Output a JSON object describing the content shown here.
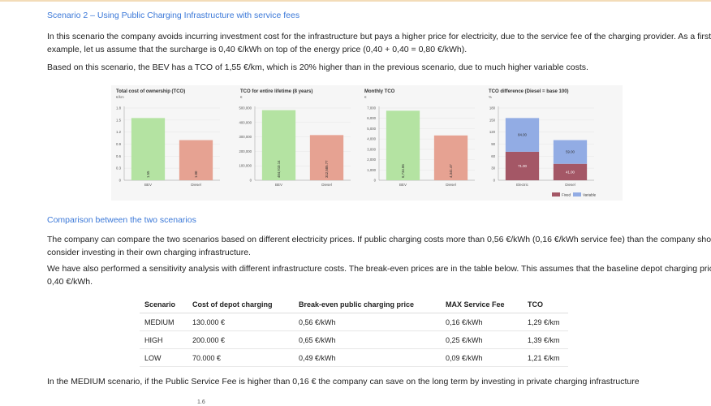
{
  "section_title": "Scenario 2 – Using Public Charging Infrastructure with service fees",
  "para1_line1": "In this scenario the company avoids incurring investment cost for the infrastructure but pays a higher price for electricity, due to the service fee of the charging provider. As a first",
  "para1_line2": "example, let us assume that the surcharge is 0,40 €/kWh on top of the energy price (0,40 + 0,40 = 0,80 €/kWh).",
  "para2": "Based on this scenario, the BEV has a TCO of 1,55 €/km, which is 20% higher than in the previous scenario, due to much higher variable costs.",
  "chart_data": [
    {
      "type": "bar",
      "title": "Total cost of ownership (TCO)",
      "unit": "€/km",
      "categories": [
        "BEV",
        "Diesel"
      ],
      "values": [
        1.55,
        1.0
      ],
      "labels": [
        "1.55",
        "1.00"
      ],
      "yticks": [
        "0",
        "0.3",
        "0.6",
        "0.9",
        "1.2",
        "1.5",
        "1.8"
      ],
      "ylim": [
        0,
        1.8
      ],
      "colors": [
        "#b4e3a2",
        "#e6a292"
      ]
    },
    {
      "type": "bar",
      "title": "TCO for entire lifetime (8 years)",
      "unit": "€",
      "categories": [
        "BEV",
        "Diesel"
      ],
      "values": [
        484910.14,
        312585.77
      ],
      "labels": [
        "484,910.14",
        "312,585.77"
      ],
      "yticks": [
        "0",
        "100,000",
        "200,000",
        "300,000",
        "400,000",
        "500,000"
      ],
      "ylim": [
        0,
        500000
      ],
      "colors": [
        "#b4e3a2",
        "#e6a292"
      ]
    },
    {
      "type": "bar",
      "title": "Monthly TCO",
      "unit": "€",
      "categories": [
        "BEV",
        "Diesel"
      ],
      "values": [
        6734.86,
        4341.47
      ],
      "labels": [
        "6,734.86",
        "4,341.47"
      ],
      "yticks": [
        "0",
        "1,000",
        "2,000",
        "3,000",
        "4,000",
        "5,000",
        "6,000",
        "7,000"
      ],
      "ylim": [
        0,
        7000
      ],
      "colors": [
        "#b4e3a2",
        "#e6a292"
      ]
    },
    {
      "type": "stacked-bar",
      "title": "TCO difference (Diesel = base 100)",
      "unit": "%",
      "categories": [
        "Electric",
        "Diesel"
      ],
      "series": [
        {
          "name": "Fixed",
          "values": [
            71,
            41
          ],
          "labels": [
            "71.00",
            "41.00"
          ],
          "color": "#a45766"
        },
        {
          "name": "Variable",
          "values": [
            84,
            59
          ],
          "labels": [
            "84.00",
            "59.00"
          ],
          "color": "#92ace4"
        }
      ],
      "yticks": [
        "0",
        "30",
        "60",
        "90",
        "120",
        "150",
        "180"
      ],
      "ylim": [
        0,
        180
      ],
      "legend": "bottom-right"
    }
  ],
  "comparison_title": "Comparison between the two scenarios",
  "para3_line1": "The company can compare the two scenarios based on different electricity prices. If public charging costs more than 0,56 €/kWh (0,16 €/kWh service fee) than the company should",
  "para3_line2": "consider investing in their own charging infrastructure.",
  "para4_line1": "We have also performed a sensitivity analysis with different infrastructure costs. The break-even prices are in the table below. This assumes that the baseline depot charging price is",
  "para4_line2": "0,40 €/kWh.",
  "table": {
    "headers": [
      "Scenario",
      "Cost of depot charging",
      "Break-even public charging price",
      "MAX Service Fee",
      "TCO"
    ],
    "rows": [
      [
        "MEDIUM",
        "130.000 €",
        "0,56 €/kWh",
        "0,16 €/kWh",
        "1,29 €/km"
      ],
      [
        "HIGH",
        "200.000 €",
        "0,65 €/kWh",
        "0,25 €/kWh",
        "1,39 €/km"
      ],
      [
        "LOW",
        "70.000 €",
        "0,49 €/kWh",
        "0,09 €/kWh",
        "1,21 €/km"
      ]
    ]
  },
  "para5": "In the MEDIUM scenario, if the Public Service Fee is higher than 0,16 € the company can save on the long term by investing in private charging infrastructure",
  "partial_axis_label": "1.6"
}
